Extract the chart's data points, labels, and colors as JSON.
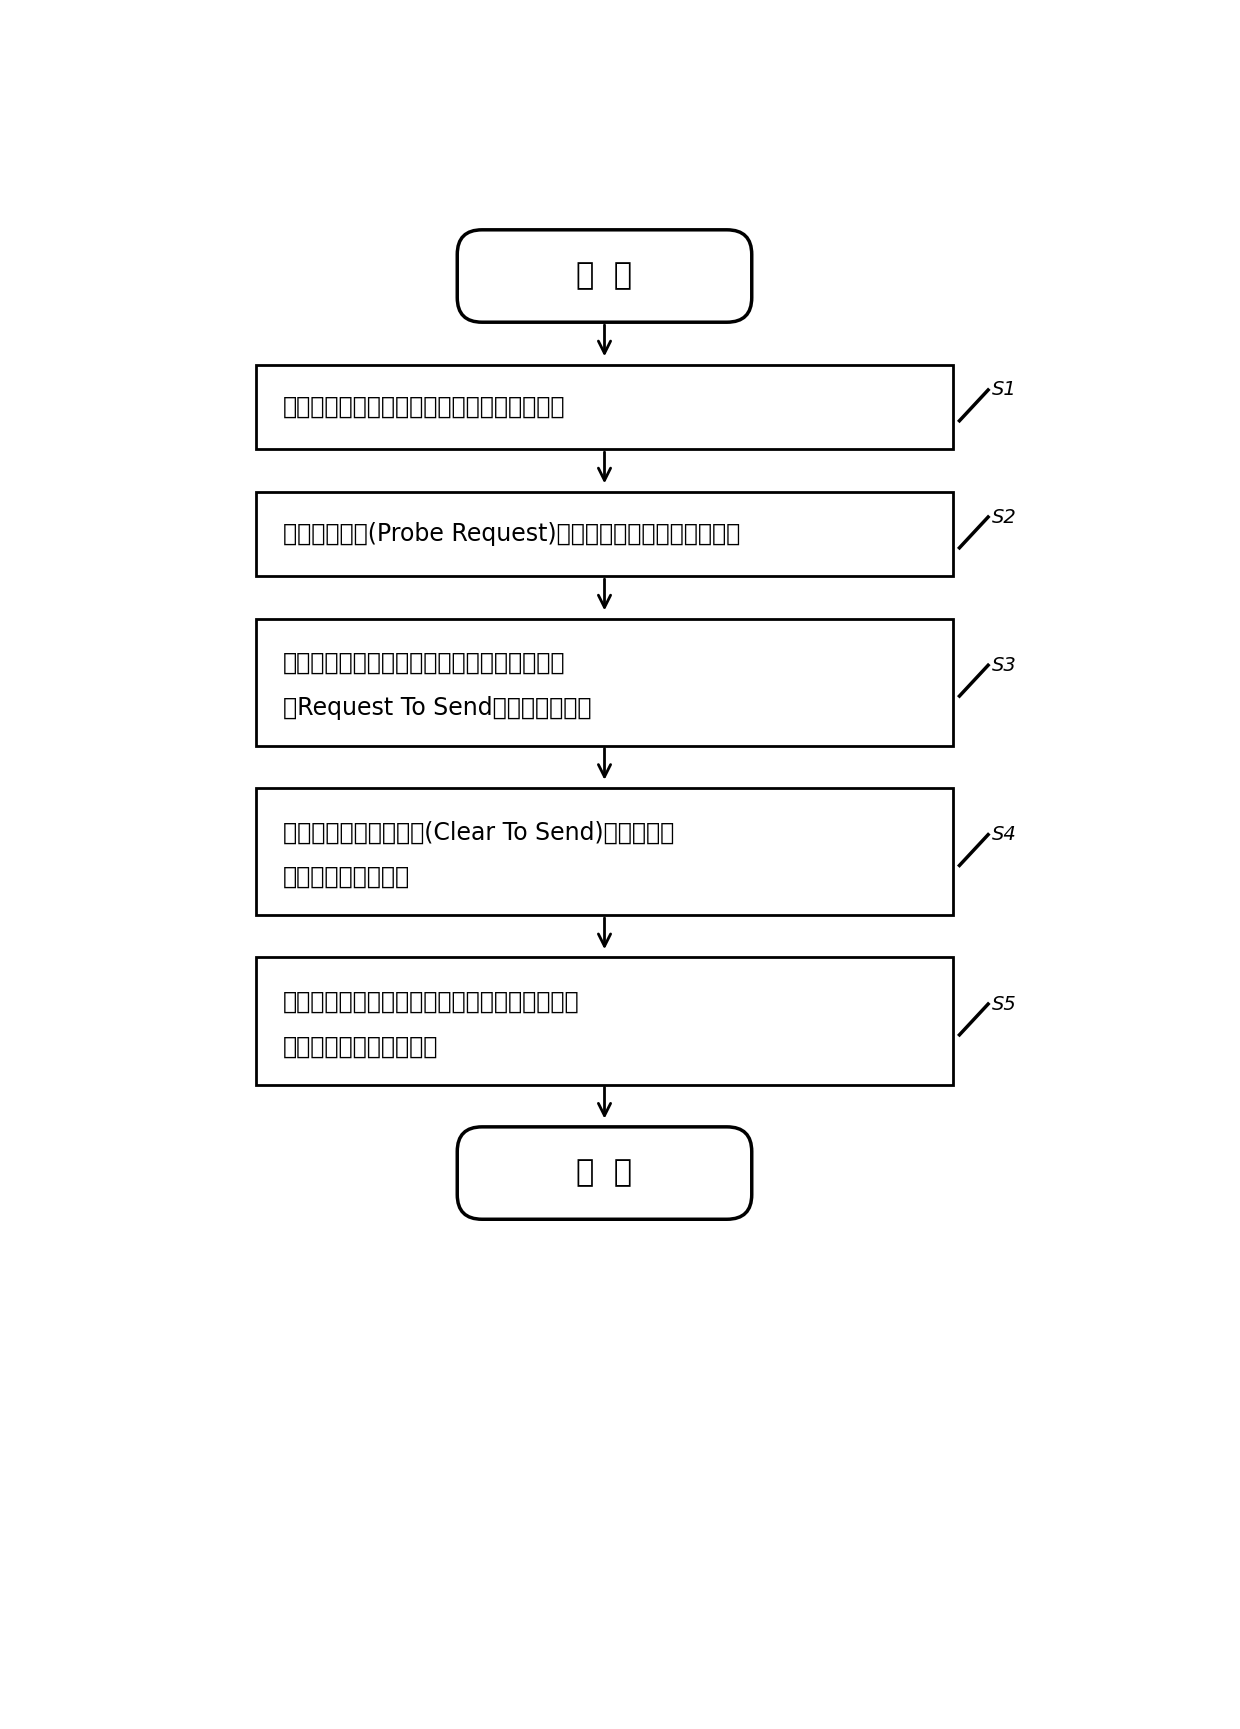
{
  "bg_color": "#ffffff",
  "line_color": "#000000",
  "text_color": "#000000",
  "start_end_text": [
    "开  始",
    "结  束"
  ],
  "steps": [
    {
      "label": "S1",
      "lines": [
        "建立记录所有要追踪的智能终端设备数据库。"
      ]
    },
    {
      "label": "S2",
      "lines": [
        "监听探测请求(Probe Request)来探测并跟踪智能终端设备。"
      ]
    },
    {
      "label": "S3",
      "lines": [
        "向区域内所有目标智能终端设备发送请求发送",
        "（Request To Send）控制数据帧。"
      ]
    },
    {
      "label": "S4",
      "lines": [
        "通过监听到的允许发送(Clear To Send)控制帧来探",
        "测并跟踪智能终端。"
      ]
    },
    {
      "label": "S5",
      "lines": [
        "记录统计所有被监测的智能终端设备的状态，进",
        "行追踪定位和轨迹记录。"
      ]
    }
  ],
  "font_size_main": 17,
  "font_size_label": 14,
  "font_size_start_end": 22
}
